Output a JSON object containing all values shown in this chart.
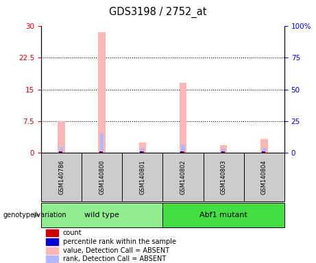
{
  "title": "GDS3198 / 2752_at",
  "samples": [
    "GSM140786",
    "GSM140800",
    "GSM140801",
    "GSM140802",
    "GSM140803",
    "GSM140804"
  ],
  "groups": [
    {
      "name": "wild type",
      "indices": [
        0,
        1,
        2
      ],
      "color": "#90ee90"
    },
    {
      "name": "Abf1 mutant",
      "indices": [
        3,
        4,
        5
      ],
      "color": "#44dd44"
    }
  ],
  "value_absent": [
    7.4,
    28.6,
    2.4,
    16.5,
    1.8,
    3.2
  ],
  "rank_absent_pct": [
    4.0,
    15.0,
    3.5,
    6.5,
    3.2,
    3.6
  ],
  "count_val": [
    0.3,
    0.3,
    0.3,
    0.3,
    0.3,
    0.3
  ],
  "rank_val": [
    0.25,
    0.25,
    0.25,
    0.25,
    0.25,
    0.25
  ],
  "left_ylim": [
    0,
    30
  ],
  "right_ylim": [
    0,
    100
  ],
  "left_yticks": [
    0,
    7.5,
    15,
    22.5,
    30
  ],
  "right_yticks": [
    0,
    25,
    50,
    75,
    100
  ],
  "right_yticklabels": [
    "0",
    "25",
    "50",
    "75",
    "100%"
  ],
  "left_color": "#cc0000",
  "right_color": "#0000cc",
  "value_absent_color": "#ffb6b6",
  "rank_absent_color": "#b0b8ff",
  "count_color": "#cc0000",
  "rank_color": "#0000cc",
  "group_label": "genotype/variation",
  "legend_items": [
    {
      "label": "count",
      "color": "#cc0000"
    },
    {
      "label": "percentile rank within the sample",
      "color": "#0000cc"
    },
    {
      "label": "value, Detection Call = ABSENT",
      "color": "#ffb6b6"
    },
    {
      "label": "rank, Detection Call = ABSENT",
      "color": "#b0b8ff"
    }
  ]
}
